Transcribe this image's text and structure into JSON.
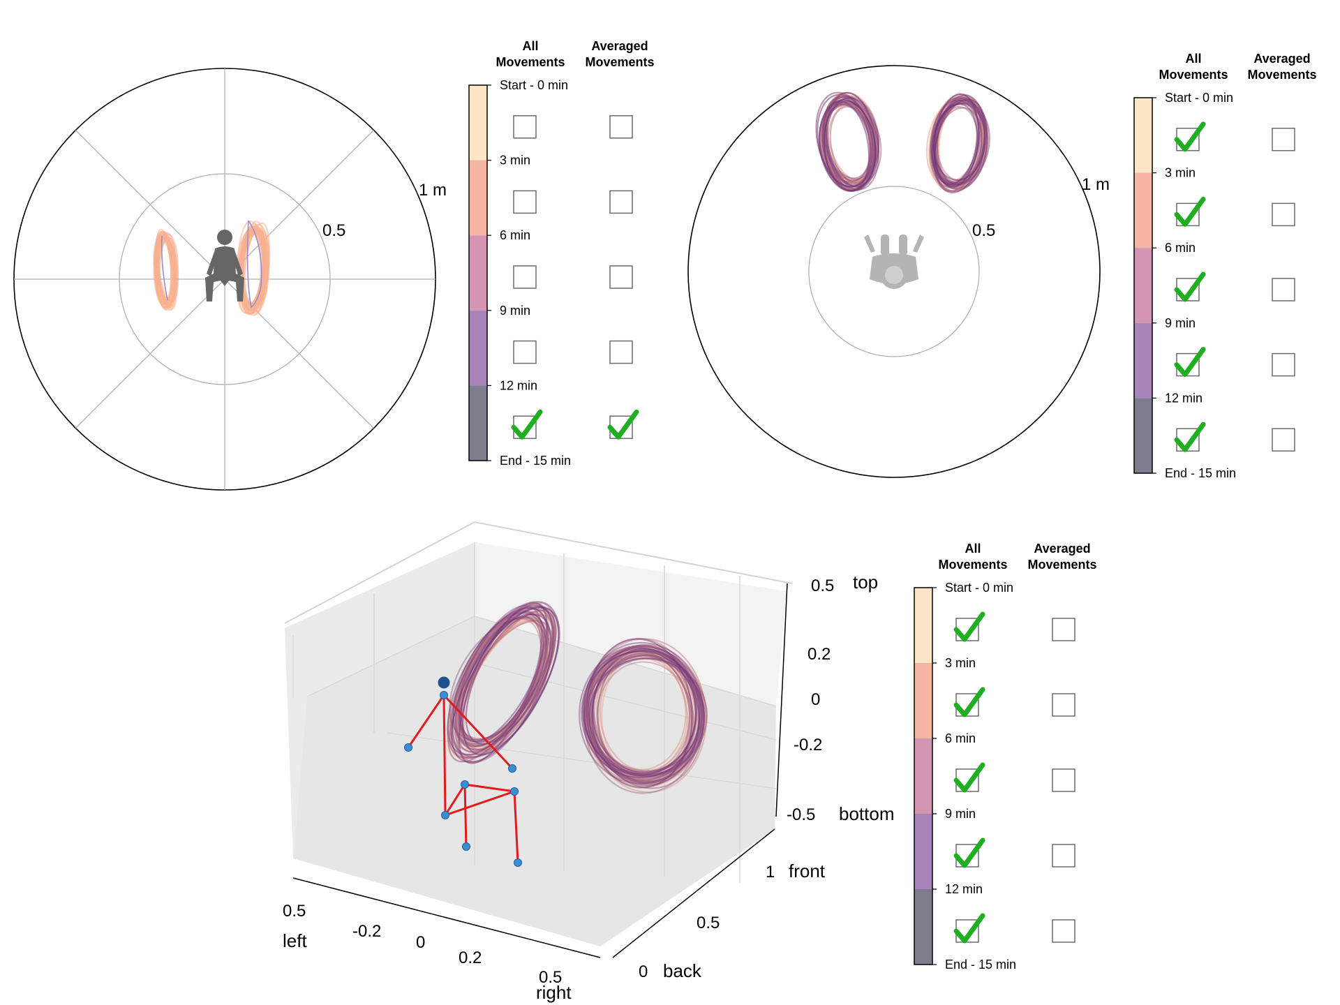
{
  "colors": {
    "time_bands": [
      "#fde6c8",
      "#f6b5a3",
      "#d495b3",
      "#a884bb",
      "#7e7d8e"
    ],
    "trajectory_early": "#f7b08f",
    "trajectory_late": "#6a2f78",
    "skeleton": "#e41a1c",
    "joint": "#3a8fd1",
    "check": "#1fae1f"
  },
  "icons": {
    "top_left_figure": "seated-person-front-icon",
    "top_right_figure": "seated-person-top-icon",
    "checked": "green-checkmark-icon",
    "unchecked": "empty-checkbox-icon"
  },
  "legend": {
    "header_all": [
      "All",
      "Movements"
    ],
    "header_avg": [
      "Averaged",
      "Movements"
    ],
    "time_labels": [
      "Start - 0 min",
      "3 min",
      "6 min",
      "9 min",
      "12 min",
      "End - 15 min"
    ]
  },
  "panels": [
    {
      "id": "front-polar",
      "radial_ticks": [
        "0.5",
        "1 m"
      ],
      "all_checked": [
        false,
        false,
        false,
        false,
        true
      ],
      "avg_checked": [
        false,
        false,
        false,
        false,
        true
      ]
    },
    {
      "id": "top-polar",
      "radial_ticks": [
        "0.5",
        "1 m"
      ],
      "all_checked": [
        true,
        true,
        true,
        true,
        true
      ],
      "avg_checked": [
        false,
        false,
        false,
        false,
        false
      ]
    },
    {
      "id": "3d",
      "all_checked": [
        true,
        true,
        true,
        true,
        true
      ],
      "avg_checked": [
        false,
        false,
        false,
        false,
        false
      ]
    }
  ],
  "chart_data": [
    {
      "type": "scatter",
      "title": "",
      "projection": "polar (front view)",
      "radial_ticks": [
        0.5,
        1
      ],
      "radial_unit": "m",
      "series": [
        {
          "name": "All Movements",
          "time_range_min": [
            12,
            15
          ]
        },
        {
          "name": "Averaged Movements",
          "time_range_min": [
            12,
            15
          ]
        }
      ]
    },
    {
      "type": "scatter",
      "title": "",
      "projection": "polar (top view)",
      "radial_ticks": [
        0.5,
        1
      ],
      "radial_unit": "m",
      "series": [
        {
          "name": "All Movements",
          "time_range_min": [
            0,
            15
          ]
        }
      ]
    },
    {
      "type": "scatter",
      "title": "",
      "projection": "3d",
      "axes": {
        "lateral": {
          "ticks": [
            "0.5",
            "-0.2",
            "0",
            "0.2",
            "0.5"
          ],
          "ends": [
            "left",
            "right"
          ]
        },
        "depth": {
          "ticks": [
            "0",
            "0.5",
            "1"
          ],
          "ends": [
            "back",
            "front"
          ]
        },
        "vertical": {
          "ticks": [
            "0.5",
            "0.2",
            "0",
            "-0.2",
            "-0.5"
          ],
          "ends": [
            "top",
            "bottom"
          ]
        }
      },
      "series": [
        {
          "name": "All Movements",
          "time_range_min": [
            0,
            15
          ]
        }
      ]
    }
  ]
}
